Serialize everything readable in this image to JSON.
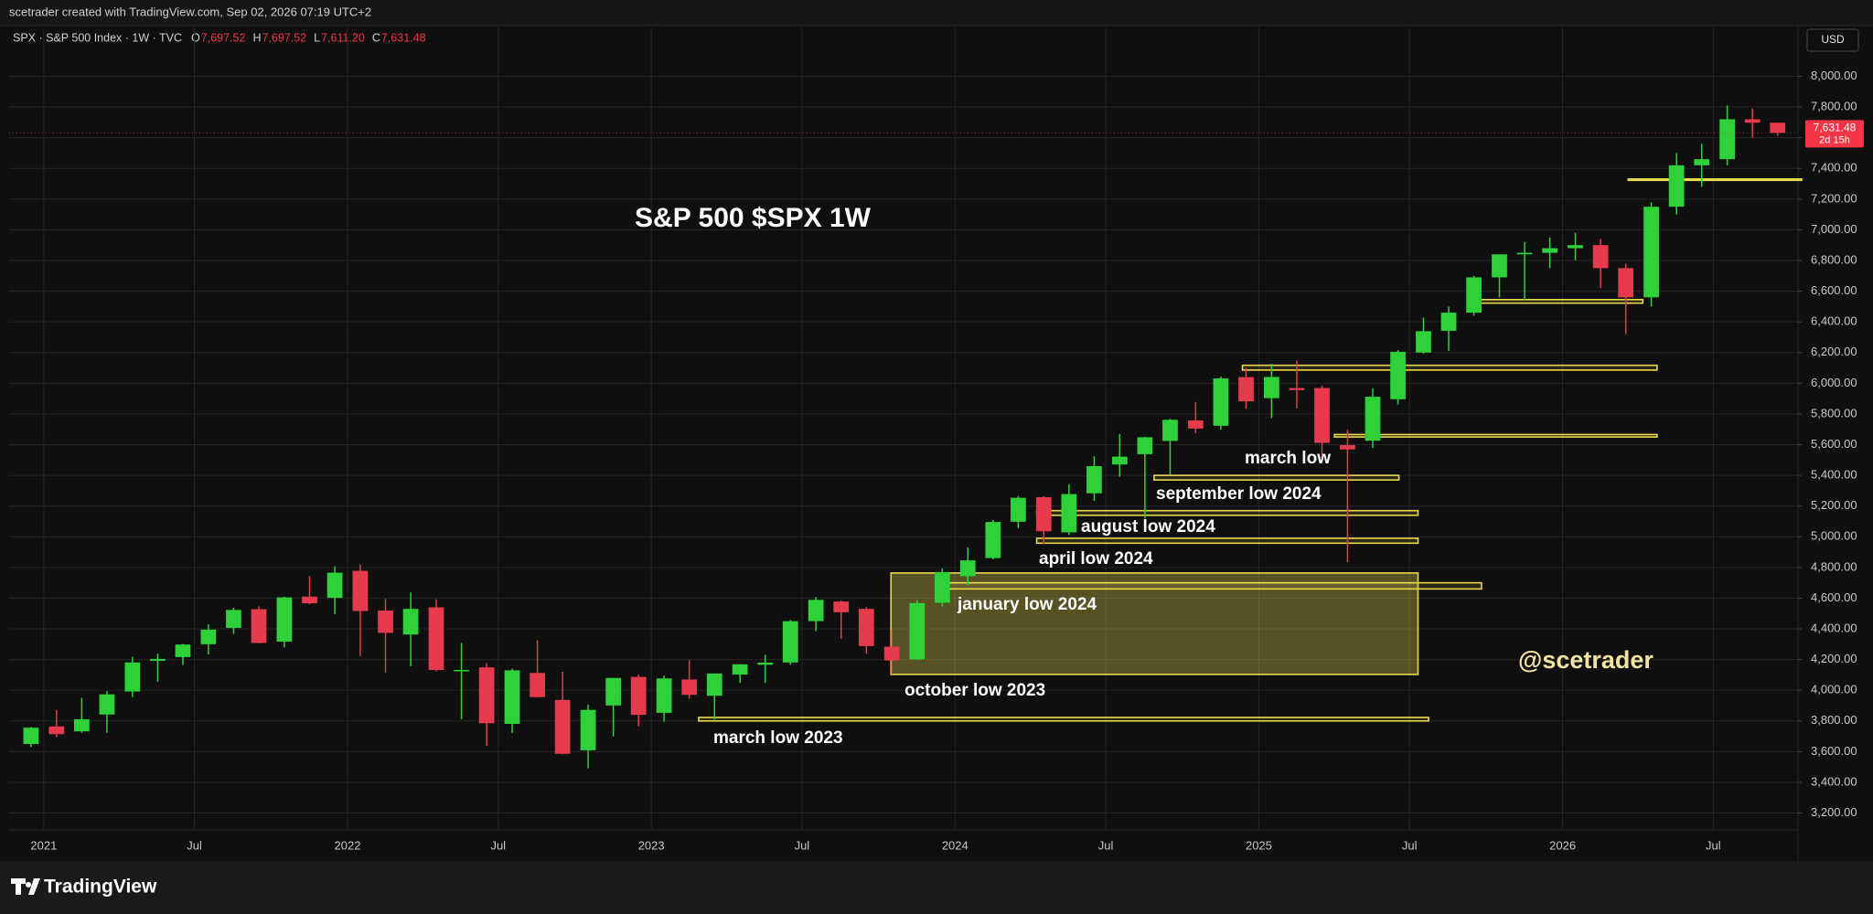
{
  "header": {
    "byline": "scetrader created with TradingView.com, Sep 02, 2026 07:19 UTC+2",
    "symbol": "SPX · S&P 500 Index · 1W · TVC",
    "ohlc": [
      {
        "key": "O",
        "value": "7,697.52"
      },
      {
        "key": "H",
        "value": "7,697.52"
      },
      {
        "key": "L",
        "value": "7,611.20"
      },
      {
        "key": "C",
        "value": "7,631.48"
      }
    ],
    "currency": "USD",
    "last_price_label": "7,631.48",
    "countdown": "2d 15h",
    "brand": "TradingView"
  },
  "chart_data": {
    "type": "candlestick",
    "title": "S&P 500 $SPX 1W",
    "watermark": "@scetrader",
    "up_color": "#2fd13a",
    "down_color": "#e63b4d",
    "zone_color": "#e9d94e",
    "grid": true,
    "xlim": [
      2020.886,
      2026.775
    ],
    "ylim": [
      3090,
      8110
    ],
    "xticks": [
      2021,
      {
        "value": 2021.496,
        "label": "Jul"
      },
      2022,
      {
        "value": 2022.496,
        "label": "Jul"
      },
      2023,
      {
        "value": 2023.496,
        "label": "Jul"
      },
      2024,
      {
        "value": 2024.496,
        "label": "Jul"
      },
      2025,
      {
        "value": 2025.496,
        "label": "Jul"
      },
      2026,
      {
        "value": 2026.496,
        "label": "Jul"
      }
    ],
    "yticks": [
      {
        "value": 3200,
        "label": "3,200.00"
      },
      {
        "value": 3400,
        "label": "3,400.00"
      },
      {
        "value": 3600,
        "label": "3,600.00"
      },
      {
        "value": 3800,
        "label": "3,800.00"
      },
      {
        "value": 4000,
        "label": "4,000.00"
      },
      {
        "value": 4200,
        "label": "4,200.00"
      },
      {
        "value": 4400,
        "label": "4,400.00"
      },
      {
        "value": 4600,
        "label": "4,600.00"
      },
      {
        "value": 4800,
        "label": "4,800.00"
      },
      {
        "value": 5000,
        "label": "5,000.00"
      },
      {
        "value": 5200,
        "label": "5,200.00"
      },
      {
        "value": 5400,
        "label": "5,400.00"
      },
      {
        "value": 5600,
        "label": "5,600.00"
      },
      {
        "value": 5800,
        "label": "5,800.00"
      },
      {
        "value": 6000,
        "label": "6,000.00"
      },
      {
        "value": 6200,
        "label": "6,200.00"
      },
      {
        "value": 6400,
        "label": "6,400.00"
      },
      {
        "value": 6600,
        "label": "6,600.00"
      },
      {
        "value": 6800,
        "label": "6,800.00"
      },
      {
        "value": 7000,
        "label": "7,000.00"
      },
      {
        "value": 7200,
        "label": "7,200.00"
      },
      {
        "value": 7400,
        "label": "7,400.00"
      },
      {
        "value": 7600,
        "label": "7,600.00"
      },
      {
        "value": 7800,
        "label": "7,800.00"
      },
      {
        "value": 8000,
        "label": "8,000.00"
      }
    ],
    "x": [
      2020.958,
      2021.042,
      2021.125,
      2021.208,
      2021.292,
      2021.375,
      2021.458,
      2021.542,
      2021.625,
      2021.708,
      2021.792,
      2021.875,
      2021.958,
      2022.042,
      2022.125,
      2022.208,
      2022.292,
      2022.375,
      2022.458,
      2022.542,
      2022.625,
      2022.708,
      2022.792,
      2022.875,
      2022.958,
      2023.042,
      2023.125,
      2023.208,
      2023.292,
      2023.375,
      2023.458,
      2023.542,
      2023.625,
      2023.708,
      2023.792,
      2023.875,
      2023.958,
      2024.042,
      2024.125,
      2024.208,
      2024.292,
      2024.375,
      2024.458,
      2024.542,
      2024.625,
      2024.708,
      2024.792,
      2024.875,
      2024.958,
      2025.042,
      2025.125,
      2025.208,
      2025.292,
      2025.375,
      2025.458,
      2025.542,
      2025.625,
      2025.708,
      2025.792,
      2025.875,
      2025.958,
      2026.042,
      2026.125,
      2026.208,
      2026.292,
      2026.375,
      2026.458,
      2026.542,
      2026.625,
      2026.708
    ],
    "open": [
      3650,
      3764,
      3732,
      3842,
      3992,
      4192,
      4216,
      4300,
      4406,
      4528,
      4317,
      4610,
      4602,
      4778,
      4519,
      4363,
      4540,
      4130,
      4149,
      3781,
      4113,
      3937,
      3609,
      3901,
      4087,
      3853,
      4070,
      3964,
      4102,
      4166,
      4181,
      4450,
      4578,
      4530,
      4284,
      4201,
      4570,
      4743,
      4861,
      5098,
      5258,
      5029,
      5283,
      5471,
      5538,
      5624,
      5758,
      5723,
      6040,
      5903,
      5969,
      5969,
      5597,
      5626,
      5896,
      6200,
      6342,
      6460,
      6690,
      6840,
      6850,
      6880,
      6900,
      6750,
      6560,
      7150,
      7420,
      7460,
      7720,
      7697.52
    ],
    "high": [
      3760,
      3870,
      3950,
      3994,
      4218,
      4238,
      4302,
      4429,
      4537,
      4546,
      4609,
      4743,
      4808,
      4818,
      4595,
      4637,
      4593,
      4308,
      4177,
      4140,
      4325,
      4120,
      3906,
      4080,
      4101,
      4095,
      4195,
      4110,
      4170,
      4231,
      4458,
      4607,
      4584,
      4541,
      4393,
      4587,
      4793,
      4931,
      5111,
      5265,
      5264,
      5342,
      5524,
      5669,
      5651,
      5768,
      5878,
      6044,
      6100,
      6128,
      6147,
      5986,
      5696,
      5968,
      6215,
      6428,
      6500,
      6700,
      6800,
      6920,
      6950,
      6980,
      6940,
      6780,
      7180,
      7500,
      7560,
      7810,
      7790,
      7697.52
    ],
    "low": [
      3630,
      3694,
      3723,
      3723,
      3955,
      4056,
      4165,
      4233,
      4367,
      4306,
      4279,
      4560,
      4496,
      4223,
      4115,
      4157,
      4124,
      3811,
      3637,
      3721,
      3955,
      3584,
      3492,
      3699,
      3764,
      3795,
      3944,
      3809,
      4048,
      4048,
      4166,
      4385,
      4335,
      4238,
      4104,
      4197,
      4546,
      4683,
      4853,
      5057,
      4954,
      5012,
      5234,
      5391,
      5120,
      5403,
      5675,
      5697,
      5833,
      5773,
      5837,
      5505,
      4835,
      5578,
      5862,
      6193,
      6212,
      6440,
      6560,
      6540,
      6750,
      6800,
      6620,
      6320,
      6500,
      7100,
      7280,
      7420,
      7600,
      7611.2
    ],
    "close": [
      3756,
      3714,
      3811,
      3973,
      4181,
      4204,
      4298,
      4395,
      4523,
      4308,
      4605,
      4567,
      4766,
      4516,
      4374,
      4530,
      4132,
      4132,
      3785,
      4130,
      3955,
      3586,
      3872,
      4080,
      3840,
      4077,
      3970,
      4109,
      4169,
      4180,
      4450,
      4589,
      4508,
      4288,
      4194,
      4568,
      4770,
      4846,
      5096,
      5254,
      5036,
      5278,
      5460,
      5522,
      5648,
      5762,
      5705,
      6032,
      5882,
      6041,
      5955,
      5612,
      5569,
      5912,
      6205,
      6339,
      6460,
      6690,
      6840,
      6850,
      6880,
      6900,
      6750,
      6560,
      7150,
      7420,
      7460,
      7720,
      7697.52,
      7631.48
    ],
    "zones": [
      {
        "y": [
          3800,
          3823
        ],
        "x": [
          2023.156,
          2025.559
        ]
      },
      {
        "y": [
          4103,
          4764
        ],
        "x": [
          2023.789,
          2025.524
        ]
      },
      {
        "y": [
          4660,
          4700
        ],
        "x": [
          2023.947,
          2025.733
        ]
      },
      {
        "y": [
          4958,
          4990
        ],
        "x": [
          2024.269,
          2025.524
        ]
      },
      {
        "y": [
          5140,
          5170
        ],
        "x": [
          2024.269,
          2025.524
        ]
      },
      {
        "y": [
          5370,
          5400
        ],
        "x": [
          2024.655,
          2025.461
        ]
      },
      {
        "y": [
          5650,
          5666
        ],
        "x": [
          2025.249,
          2026.311
        ]
      },
      {
        "y": [
          6086,
          6117
        ],
        "x": [
          2024.946,
          2026.311
        ]
      },
      {
        "y": [
          6522,
          6545
        ],
        "x": [
          2025.693,
          2026.264
        ]
      },
      {
        "y": [
          7331,
          7331
        ],
        "x": [
          2026.216,
          2026.787
        ]
      }
    ],
    "annotations": [
      "march low 2023",
      "october low 2023",
      "january low 2024",
      "april low 2024",
      "august low 2024",
      "september low 2024",
      "march low"
    ]
  }
}
